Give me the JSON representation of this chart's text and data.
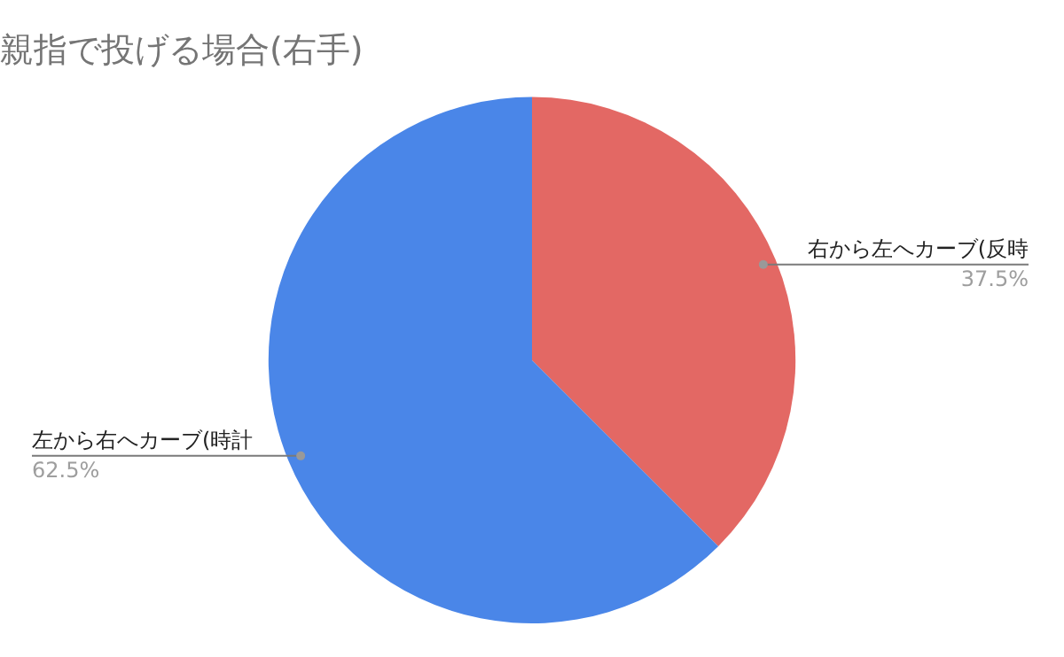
{
  "chart_data": {
    "type": "pie",
    "title": "親指で投げる場合(右手)",
    "categories": [
      "右から左へカーブ(反時",
      "左から右へカーブ(時計"
    ],
    "values": [
      37.5,
      62.5
    ],
    "value_labels": [
      "37.5%",
      "62.5%"
    ],
    "colors": [
      "#e36864",
      "#4a86e8"
    ],
    "legend": false
  }
}
